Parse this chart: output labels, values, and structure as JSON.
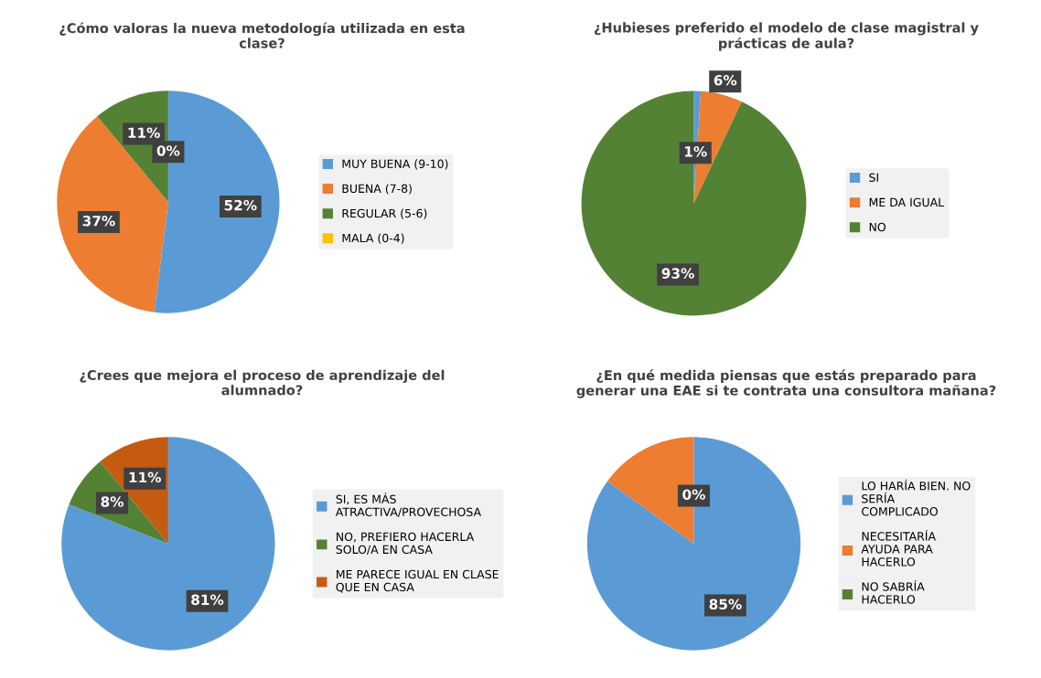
{
  "chart_data": [
    {
      "type": "pie",
      "title": "¿Cómo valoras la nueva metodología utilizada en esta clase?",
      "categories": [
        "MUY BUENA (9-10)",
        "BUENA (7-8)",
        "REGULAR (5-6)",
        "MALA (0-4)"
      ],
      "values": [
        52,
        37,
        11,
        0
      ],
      "colors": [
        "#5b9bd5",
        "#ed7d31",
        "#548235",
        "#ffc000"
      ],
      "value_labels": [
        "52%",
        "37%",
        "11%",
        "0%"
      ],
      "legend": "right"
    },
    {
      "type": "pie",
      "title": "¿Hubieses preferido el modelo de clase magistral y prácticas de aula?",
      "categories": [
        "SI",
        "ME DA IGUAL",
        "NO"
      ],
      "values": [
        1,
        6,
        93
      ],
      "colors": [
        "#5b9bd5",
        "#ed7d31",
        "#548235"
      ],
      "value_labels": [
        "1%",
        "6%",
        "93%"
      ],
      "legend": "right"
    },
    {
      "type": "pie",
      "title": "¿Crees que mejora el proceso de aprendizaje del alumnado?",
      "categories": [
        "SI, ES MÁS ATRACTIVA/PROVECHOSA",
        "NO, PREFIERO HACERLA SOLO/A EN CASA",
        "ME PARECE IGUAL EN CLASE QUE EN CASA"
      ],
      "values": [
        81,
        8,
        11
      ],
      "colors": [
        "#5b9bd5",
        "#548235",
        "#c55a11"
      ],
      "value_labels": [
        "81%",
        "8%",
        "11%"
      ],
      "legend": "right"
    },
    {
      "type": "pie",
      "title": "¿En qué medida piensas que estás preparado para generar una EAE si te contrata una consultora mañana?",
      "categories": [
        "LO HARÍA BIEN. NO SERÍA COMPLICADO",
        "NECESITARÍA AYUDA PARA HACERLO",
        "NO SABRÍA HACERLO"
      ],
      "values": [
        85,
        15,
        0
      ],
      "colors": [
        "#5b9bd5",
        "#ed7d31",
        "#548235"
      ],
      "value_labels": [
        "85%",
        null,
        "0%"
      ],
      "legend": "right"
    }
  ]
}
